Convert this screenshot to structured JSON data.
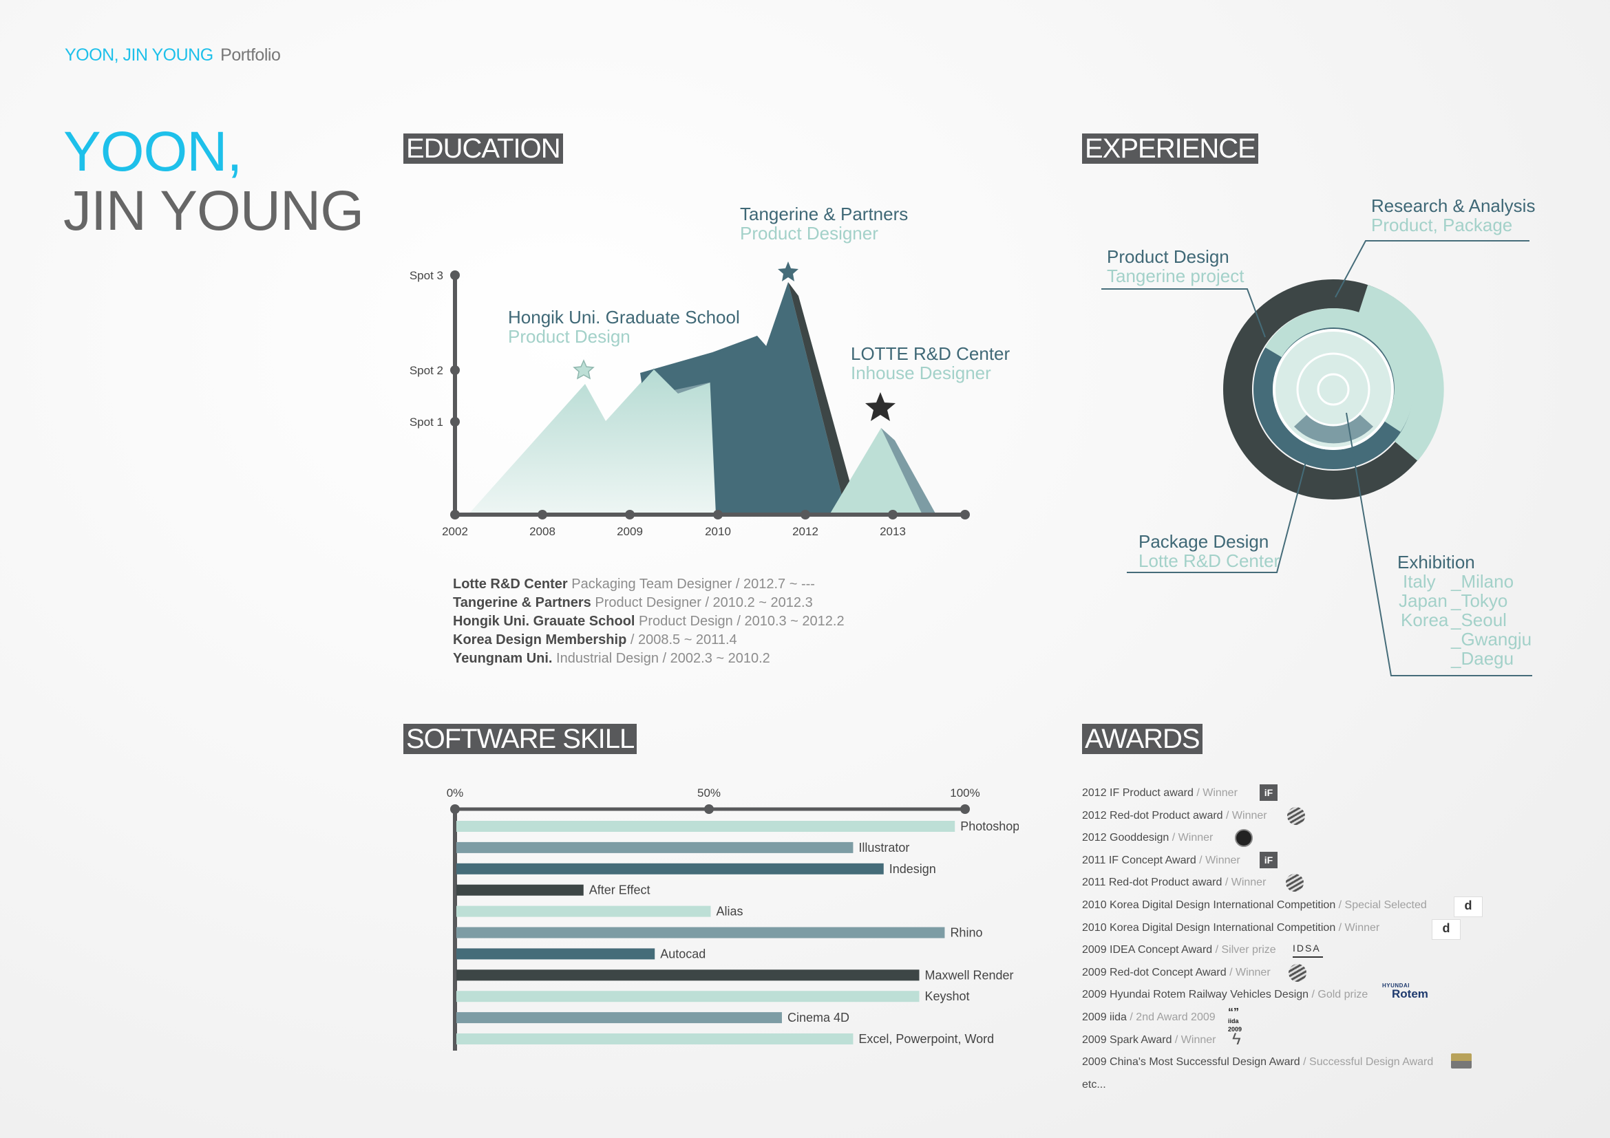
{
  "header": {
    "name": "YOON, JIN YOUNG",
    "label": "Portfolio"
  },
  "title": {
    "line1": "YOON,",
    "line2": "JIN YOUNG"
  },
  "sections": {
    "education": "EDUCATION",
    "experience": "EXPERIENCE",
    "software": "SOFTWARE SKILL",
    "awards": "AWARDS"
  },
  "education_chart": {
    "y_labels": [
      "Spot 3",
      "Spot 2",
      "Spot 1"
    ],
    "x_labels": [
      "2002",
      "2008",
      "2009",
      "2010",
      "2012",
      "2013"
    ],
    "peaks": [
      {
        "title": "Tangerine & Partners",
        "sub": "Product Designer"
      },
      {
        "title": "Hongik Uni. Graduate School",
        "sub": "Product Design"
      },
      {
        "title": "LOTTE R&D Center",
        "sub": "Inhouse Designer"
      }
    ]
  },
  "education_list": [
    {
      "bold": "Lotte R&D Center",
      "light": " Packaging Team Designer / 2012.7 ~  ---"
    },
    {
      "bold": "Tangerine & Partners",
      "light": " Product Designer / 2010.2 ~ 2012.3"
    },
    {
      "bold": "Hongik Uni. Grauate School",
      "light": " Product Design / 2010.3 ~ 2012.2"
    },
    {
      "bold": "Korea Design Membership",
      "light": " / 2008.5 ~ 2011.4"
    },
    {
      "bold": "Yeungnam Uni.",
      "light": " Industrial Design  / 2002.3 ~ 2010.2"
    }
  ],
  "experience": {
    "research": {
      "title": "Research & Analysis",
      "sub": "Product, Package"
    },
    "product": {
      "title": "Product Design",
      "sub": "Tangerine project"
    },
    "package": {
      "title": "Package Design",
      "sub": "Lotte R&D Center"
    },
    "exhibition": {
      "title": "Exhibition",
      "rows": [
        {
          "country": "Italy",
          "city": "_Milano"
        },
        {
          "country": "Japan",
          "city": "_Tokyo"
        },
        {
          "country": "Korea",
          "city": "_Seoul"
        },
        {
          "country": "",
          "city": "_Gwangju"
        },
        {
          "country": "",
          "city": "_Daegu"
        }
      ]
    }
  },
  "colors": {
    "cyan": "#1ec0ea",
    "mint": "#bddfd6",
    "steel": "#7d9ca4",
    "teal": "#456c79",
    "charcoal": "#3d4646",
    "gray": "#58595b"
  },
  "chart_data": {
    "type": "bar",
    "title": "SOFTWARE SKILL",
    "xlabel": "",
    "ylabel": "",
    "ticks": [
      "0%",
      "50%",
      "100%"
    ],
    "xlim": [
      0,
      100
    ],
    "categories": [
      "Photoshop",
      "Illustrator",
      "Indesign",
      "After Effect",
      "Alias",
      "Rhino",
      "Autocad",
      "Maxwell Render",
      "Keyshot",
      "Cinema 4D",
      "Excel, Powerpoint, Word"
    ],
    "values": [
      98,
      78,
      84,
      25,
      50,
      96,
      39,
      91,
      91,
      64,
      78
    ],
    "bar_colors": [
      "#bddfd6",
      "#7d9ca4",
      "#456c79",
      "#3d4646",
      "#bddfd6",
      "#7d9ca4",
      "#456c79",
      "#3d4646",
      "#bddfd6",
      "#7d9ca4",
      "#bddfd6"
    ]
  },
  "awards": [
    {
      "name": "2012 IF Product award",
      "status": " / Winner",
      "logo": "if-logo"
    },
    {
      "name": "2012 Red-dot Product award",
      "status": " / Winner",
      "logo": "reddot-logo"
    },
    {
      "name": "2012 Gooddesign",
      "status": " / Winner",
      "logo": "gooddesign-logo"
    },
    {
      "name": "2011 IF Concept Award",
      "status": " / Winner",
      "logo": "if-logo"
    },
    {
      "name": "2011 Red-dot Product award",
      "status": " / Winner",
      "logo": "reddot-logo"
    },
    {
      "name": "2010 Korea Digital Design International Competition",
      "status": " / Special Selected",
      "logo": "design-korea-logo"
    },
    {
      "name": "2010 Korea Digital Design International Competition",
      "status": " / Winner",
      "logo": "design-korea-logo"
    },
    {
      "name": "2009 IDEA Concept Award",
      "status": " / Silver prize",
      "logo": "idea-logo"
    },
    {
      "name": "2009 Red-dot Concept Award",
      "status": " / Winner",
      "logo": "reddot-logo"
    },
    {
      "name": "2009 Hyundai Rotem Railway Vehicles Design",
      "status": " / Gold prize",
      "logo": "rotem-logo"
    },
    {
      "name": "2009 iida",
      "status": " / 2nd Award 2009",
      "logo": "iida-logo"
    },
    {
      "name": "2009 Spark Award",
      "status": " / Winner",
      "logo": "spark-logo"
    },
    {
      "name": "2009 China's Most Successful Design Award",
      "status": " / Successful Design Award",
      "logo": "china-design-logo"
    },
    {
      "name": "etc...",
      "status": "",
      "logo": ""
    }
  ],
  "logo_text": {
    "if": "iF",
    "rotem_small": "HYUNDAI",
    "rotem": "Rotem",
    "idea": "IDSA",
    "iida": "iida 2009"
  }
}
